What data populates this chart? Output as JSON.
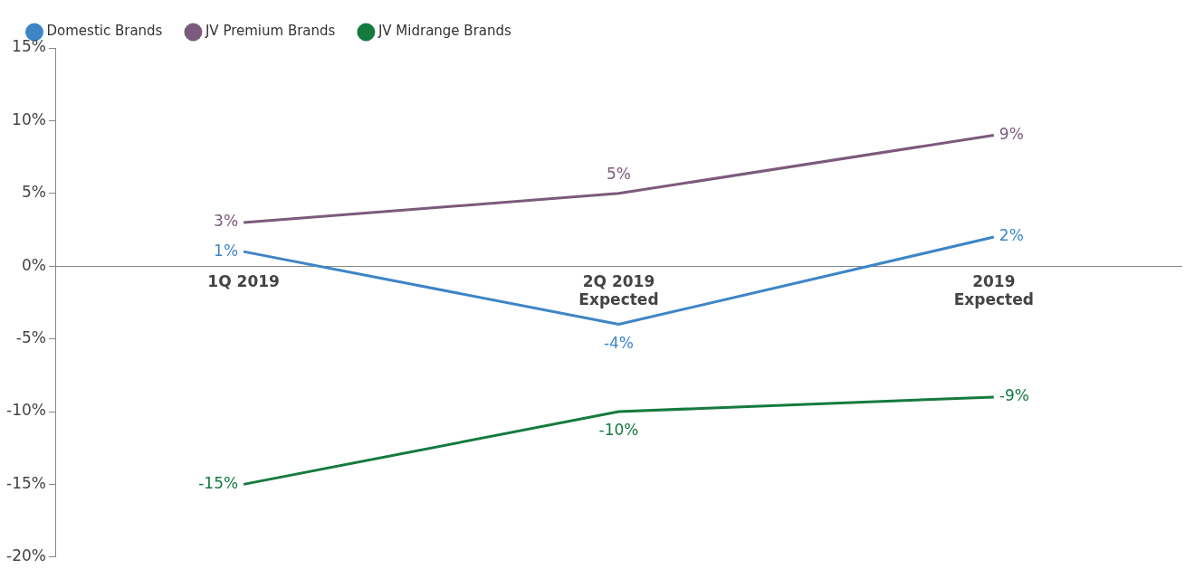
{
  "chart_data": {
    "type": "line",
    "categories": [
      "1Q 2019",
      "2Q 2019\nExpected",
      "2019\nExpected"
    ],
    "series": [
      {
        "name": "Domestic Brands",
        "color": "#3d85c6",
        "values": [
          1,
          -4,
          2
        ],
        "value_labels": [
          "1%",
          "-4%",
          "2%"
        ]
      },
      {
        "name": "JV Premium Brands",
        "color": "#7b5a7b",
        "values": [
          3,
          5,
          9
        ],
        "value_labels": [
          "3%",
          "5%",
          "9%"
        ]
      },
      {
        "name": "JV Midrange Brands",
        "color": "#157a3f",
        "values": [
          -15,
          -10,
          -9
        ],
        "value_labels": [
          "-15%",
          "-10%",
          "-9%"
        ]
      }
    ],
    "ylim": [
      -20,
      15
    ],
    "yticks": [
      {
        "value": -20,
        "label": "-20%"
      },
      {
        "value": -15,
        "label": "-15%"
      },
      {
        "value": -10,
        "label": "-10%"
      },
      {
        "value": -5,
        "label": "-5%"
      },
      {
        "value": 0,
        "label": "0%"
      },
      {
        "value": 5,
        "label": "5%"
      },
      {
        "value": 10,
        "label": "10%"
      },
      {
        "value": 15,
        "label": "15%"
      }
    ],
    "grid": false,
    "legend": "top left",
    "marker": "none",
    "line_style": "solid"
  }
}
